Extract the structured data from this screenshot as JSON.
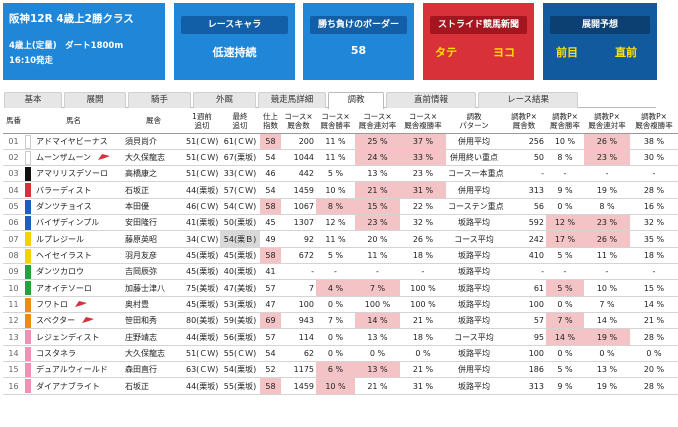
{
  "race": {
    "title": "阪神12R 4歳上2勝クラス",
    "cond": "4歳上(定量)　ダート1800m",
    "time": "16:10発走"
  },
  "cards": {
    "chara": {
      "head": "レースキャラ",
      "value": "低速持続"
    },
    "border": {
      "head": "勝ち負けのボーダー",
      "value": "58"
    },
    "news": {
      "head": "ストライド競馬新聞",
      "left": "タテ",
      "right": "ヨコ"
    },
    "forecast": {
      "head": "展開予想",
      "left": "前目",
      "right": "直前"
    }
  },
  "tabs": [
    "基本",
    "展開",
    "騎手",
    "外厩",
    "競走馬詳細",
    "調教",
    "直前情報",
    "レース結果"
  ],
  "active_tab": "調教",
  "columns": {
    "num": "馬番",
    "name": "馬名",
    "stable": "厩舎",
    "last1": [
      "1週前",
      "追切"
    ],
    "final": [
      "最終",
      "追切"
    ],
    "idx": [
      "仕上",
      "指数"
    ],
    "c_cnt": [
      "コース×",
      "厩舎数"
    ],
    "c_win": [
      "コース×",
      "厩舎勝率"
    ],
    "c_q": [
      "コース×",
      "厩舎連対率"
    ],
    "c_p": [
      "コース×",
      "厩舎複勝率"
    ],
    "pattern": [
      "調教",
      "パターン"
    ],
    "t_cnt": [
      "調教P×",
      "厩舎数"
    ],
    "t_win": [
      "調教P×",
      "厩舎勝率"
    ],
    "t_q": [
      "調教P×",
      "厩舎連対率"
    ],
    "t_p": [
      "調教P×",
      "厩舎複勝率"
    ]
  },
  "colors": {
    "frames": [
      "#ffffff",
      "#111111",
      "#d8303a",
      "#1e5fbd",
      "#f2d200",
      "#23a33b",
      "#f08a16",
      "#f191b6"
    ]
  },
  "rows": [
    {
      "n": "01",
      "f": 1,
      "name": "アドマイヤビーナス",
      "flag": false,
      "stable": "須貝尚介",
      "w1": "51(ＣＷ)",
      "wf": "61(ＣＷ)",
      "idx": "58",
      "ci": "200",
      "cw": "11 %",
      "cq": "25 %",
      "cp": "37 %",
      "pat": "併用平均",
      "ti": "256",
      "tw": "10 %",
      "tq": "26 %",
      "tp": "38 %",
      "h": {
        "idx": 1,
        "cq": 1,
        "cp": 1,
        "tq": 1
      }
    },
    {
      "n": "02",
      "f": 1,
      "name": "ムーンザムーン",
      "flag": true,
      "stable": "大久保龍志",
      "w1": "51(ＣＷ)",
      "wf": "67(栗坂)",
      "idx": "54",
      "ci": "1044",
      "cw": "11 %",
      "cq": "24 %",
      "cp": "33 %",
      "pat": "併用終い重点",
      "ti": "50",
      "tw": "8 %",
      "tq": "23 %",
      "tp": "30 %",
      "h": {
        "cq": 1,
        "cp": 1,
        "tq": 1
      }
    },
    {
      "n": "03",
      "f": 2,
      "name": "アマリリスデソーロ",
      "flag": false,
      "stable": "高橋康之",
      "w1": "51(ＣＷ)",
      "wf": "33(ＣＷ)",
      "idx": "46",
      "ci": "442",
      "cw": "5 %",
      "cq": "13 %",
      "cp": "23 %",
      "pat": "コース一本重点",
      "ti": "-",
      "tw": "-",
      "tq": "-",
      "tp": "-",
      "h": {}
    },
    {
      "n": "04",
      "f": 3,
      "name": "バラーディスト",
      "flag": false,
      "stable": "石坂正",
      "w1": "44(栗坂)",
      "wf": "57(ＣＷ)",
      "idx": "54",
      "ci": "1459",
      "cw": "10 %",
      "cq": "21 %",
      "cp": "31 %",
      "pat": "併用平均",
      "ti": "313",
      "tw": "9 %",
      "tq": "19 %",
      "tp": "28 %",
      "h": {
        "cq": 1,
        "cp": 1
      }
    },
    {
      "n": "05",
      "f": 4,
      "name": "ダンツチョイス",
      "flag": false,
      "stable": "本田優",
      "w1": "46(ＣＷ)",
      "wf": "54(ＣＷ)",
      "idx": "58",
      "ci": "1067",
      "cw": "8 %",
      "cq": "15 %",
      "cp": "22 %",
      "pat": "コーステン重点",
      "ti": "56",
      "tw": "0 %",
      "tq": "8 %",
      "tp": "16 %",
      "h": {
        "idx": 1,
        "cw": 1,
        "cq": 1
      }
    },
    {
      "n": "06",
      "f": 4,
      "name": "バイザディンプル",
      "flag": false,
      "stable": "安田隆行",
      "w1": "41(栗坂)",
      "wf": "50(栗坂)",
      "idx": "45",
      "ci": "1307",
      "cw": "12 %",
      "cq": "23 %",
      "cp": "32 %",
      "pat": "坂路平均",
      "ti": "592",
      "tw": "12 %",
      "tq": "23 %",
      "tp": "32 %",
      "h": {
        "cq": 1,
        "tw": 1,
        "tq": 1
      }
    },
    {
      "n": "07",
      "f": 5,
      "name": "ルプレジール",
      "flag": false,
      "stable": "藤原英昭",
      "w1": "34(ＣＷ)",
      "wf": "54(栗Ｂ)",
      "idx": "49",
      "ci": "92",
      "cw": "11 %",
      "cq": "20 %",
      "cp": "26 %",
      "pat": "コース平均",
      "ti": "242",
      "tw": "17 %",
      "tq": "26 %",
      "tp": "35 %",
      "h": {
        "wf": 2,
        "tw": 1,
        "tq": 1
      }
    },
    {
      "n": "08",
      "f": 5,
      "name": "ヘイセイラスト",
      "flag": false,
      "stable": "羽月友彦",
      "w1": "45(栗坂)",
      "wf": "45(栗坂)",
      "idx": "58",
      "ci": "672",
      "cw": "5 %",
      "cq": "11 %",
      "cp": "18 %",
      "pat": "坂路平均",
      "ti": "410",
      "tw": "5 %",
      "tq": "11 %",
      "tp": "18 %",
      "h": {
        "idx": 1
      }
    },
    {
      "n": "09",
      "f": 6,
      "name": "ダンツカロウ",
      "flag": false,
      "stable": "吉岡辰弥",
      "w1": "45(栗坂)",
      "wf": "40(栗坂)",
      "idx": "41",
      "ci": "-",
      "cw": "-",
      "cq": "-",
      "cp": "-",
      "pat": "坂路平均",
      "ti": "-",
      "tw": "-",
      "tq": "-",
      "tp": "-",
      "h": {}
    },
    {
      "n": "10",
      "f": 6,
      "name": "アオイテソーロ",
      "flag": false,
      "stable": "加藤士津八",
      "w1": "75(美坂)",
      "wf": "47(美坂)",
      "idx": "57",
      "ci": "7",
      "cw": "4 %",
      "cq": "7 %",
      "cp": "100 %",
      "pat": "坂路平均",
      "ti": "61",
      "tw": "5 %",
      "tq": "10 %",
      "tp": "15 %",
      "h": {
        "cw": 1,
        "cq": 1,
        "tw": 1
      }
    },
    {
      "n": "11",
      "f": 7,
      "name": "フワトロ",
      "flag": true,
      "stable": "奥村豊",
      "w1": "45(栗坂)",
      "wf": "53(栗坂)",
      "idx": "47",
      "ci": "100",
      "cw": "0 %",
      "cq": "100 %",
      "cp": "100 %",
      "pat": "坂路平均",
      "ti": "100",
      "tw": "0 %",
      "tq": "7 %",
      "tp": "14 %",
      "h": {}
    },
    {
      "n": "12",
      "f": 7,
      "name": "スペクター",
      "flag": true,
      "stable": "笹田和秀",
      "w1": "80(美坂)",
      "wf": "59(美坂)",
      "idx": "69",
      "ci": "943",
      "cw": "7 %",
      "cq": "14 %",
      "cp": "21 %",
      "pat": "坂路平均",
      "ti": "57",
      "tw": "7 %",
      "tq": "14 %",
      "tp": "21 %",
      "h": {
        "idx": 1,
        "cq": 1,
        "tw": 1
      }
    },
    {
      "n": "13",
      "f": 8,
      "name": "レジェンディスト",
      "flag": false,
      "stable": "庄野靖志",
      "w1": "44(栗坂)",
      "wf": "56(栗坂)",
      "idx": "57",
      "ci": "114",
      "cw": "0 %",
      "cq": "13 %",
      "cp": "18 %",
      "pat": "コース平均",
      "ti": "95",
      "tw": "14 %",
      "tq": "19 %",
      "tp": "28 %",
      "h": {
        "tw": 1,
        "tq": 1
      }
    },
    {
      "n": "14",
      "f": 8,
      "name": "コスタネラ",
      "flag": false,
      "stable": "大久保龍志",
      "w1": "51(ＣＷ)",
      "wf": "55(ＣＷ)",
      "idx": "54",
      "ci": "62",
      "cw": "0 %",
      "cq": "0 %",
      "cp": "0 %",
      "pat": "坂路平均",
      "ti": "100",
      "tw": "0 %",
      "tq": "0 %",
      "tp": "0 %",
      "h": {}
    },
    {
      "n": "15",
      "f": 8,
      "name": "デュアルウィールド",
      "flag": false,
      "stable": "森田直行",
      "w1": "63(ＣＷ)",
      "wf": "54(栗坂)",
      "idx": "52",
      "ci": "1175",
      "cw": "6 %",
      "cq": "13 %",
      "cp": "21 %",
      "pat": "併用平均",
      "ti": "186",
      "tw": "5 %",
      "tq": "13 %",
      "tp": "20 %",
      "h": {
        "cw": 1,
        "cq": 1
      }
    },
    {
      "n": "16",
      "f": 8,
      "name": "ダイアナブライト",
      "flag": false,
      "stable": "石坂正",
      "w1": "44(栗坂)",
      "wf": "55(栗坂)",
      "idx": "58",
      "ci": "1459",
      "cw": "10 %",
      "cq": "21 %",
      "cp": "31 %",
      "pat": "坂路平均",
      "ti": "313",
      "tw": "9 %",
      "tq": "19 %",
      "tp": "28 %",
      "h": {
        "idx": 1,
        "cw": 1
      }
    }
  ]
}
